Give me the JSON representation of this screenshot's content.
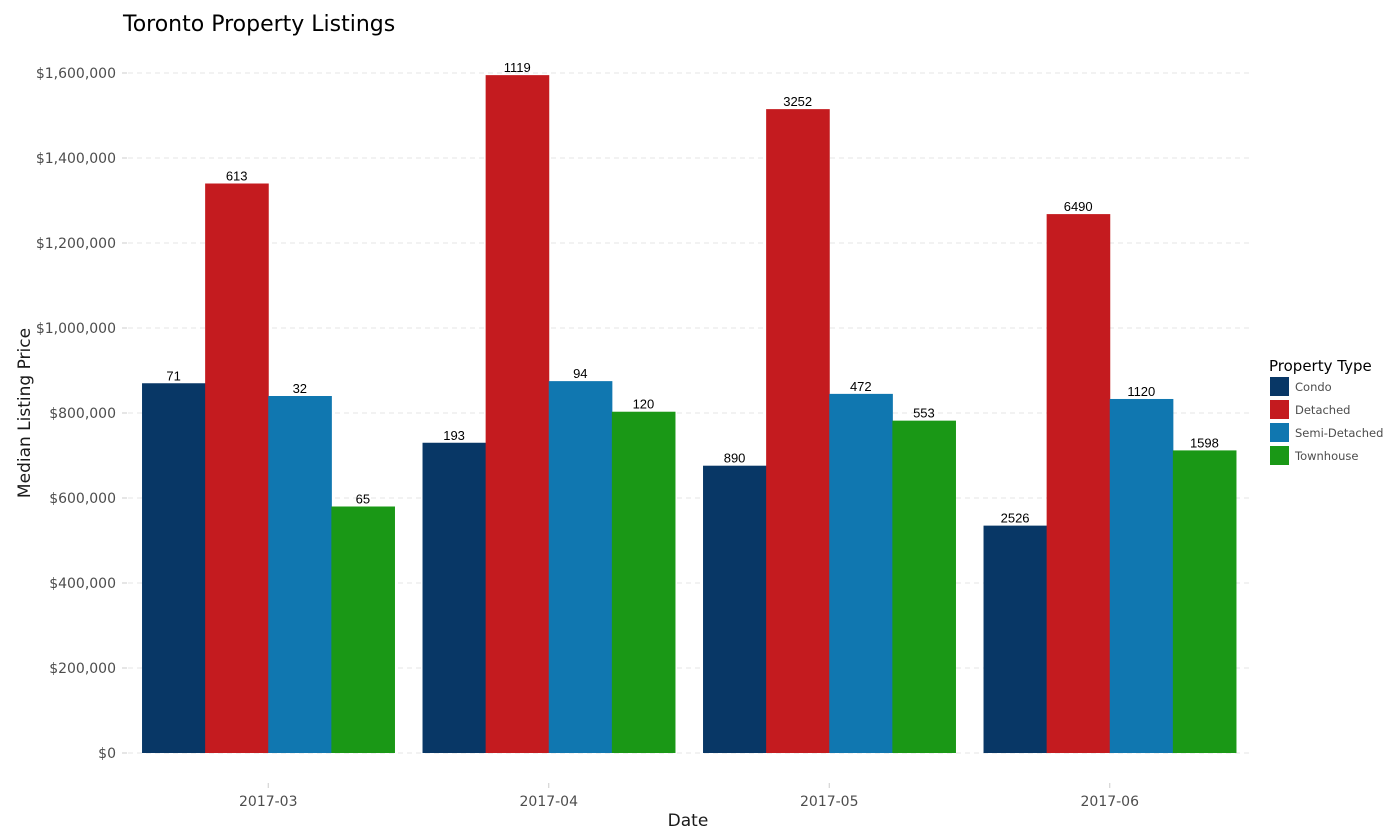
{
  "chart_data": {
    "type": "bar",
    "title": "Toronto Property Listings",
    "xlabel": "Date",
    "ylabel": "Median Listing Price",
    "ylim": [
      0,
      1600000
    ],
    "y_ticks": [
      {
        "value": 0,
        "label": "$0"
      },
      {
        "value": 200000,
        "label": "$200,000"
      },
      {
        "value": 400000,
        "label": "$400,000"
      },
      {
        "value": 600000,
        "label": "$600,000"
      },
      {
        "value": 800000,
        "label": "$800,000"
      },
      {
        "value": 1000000,
        "label": "$1,000,000"
      },
      {
        "value": 1200000,
        "label": "$1,200,000"
      },
      {
        "value": 1400000,
        "label": "$1,400,000"
      },
      {
        "value": 1600000,
        "label": "$1,600,000"
      }
    ],
    "categories": [
      "2017-03",
      "2017-04",
      "2017-05",
      "2017-06"
    ],
    "grid": "horizontal-dashed",
    "legend": {
      "title": "Property Type",
      "position": "right"
    },
    "series": [
      {
        "name": "Condo",
        "color": "#083766",
        "values": [
          870000,
          730000,
          676000,
          535000
        ],
        "labels": [
          "71",
          "193",
          "890",
          "2526"
        ]
      },
      {
        "name": "Detached",
        "color": "#c41b1f",
        "values": [
          1340000,
          1595000,
          1515000,
          1268000
        ],
        "labels": [
          "613",
          "1119",
          "3252",
          "6490"
        ]
      },
      {
        "name": "Semi-Detached",
        "color": "#1077b0",
        "values": [
          840000,
          875000,
          845000,
          833000
        ],
        "labels": [
          "32",
          "94",
          "472",
          "1120"
        ]
      },
      {
        "name": "Townhouse",
        "color": "#1a9816",
        "values": [
          580000,
          803000,
          782000,
          712000
        ],
        "labels": [
          "65",
          "120",
          "553",
          "1598"
        ]
      }
    ]
  }
}
